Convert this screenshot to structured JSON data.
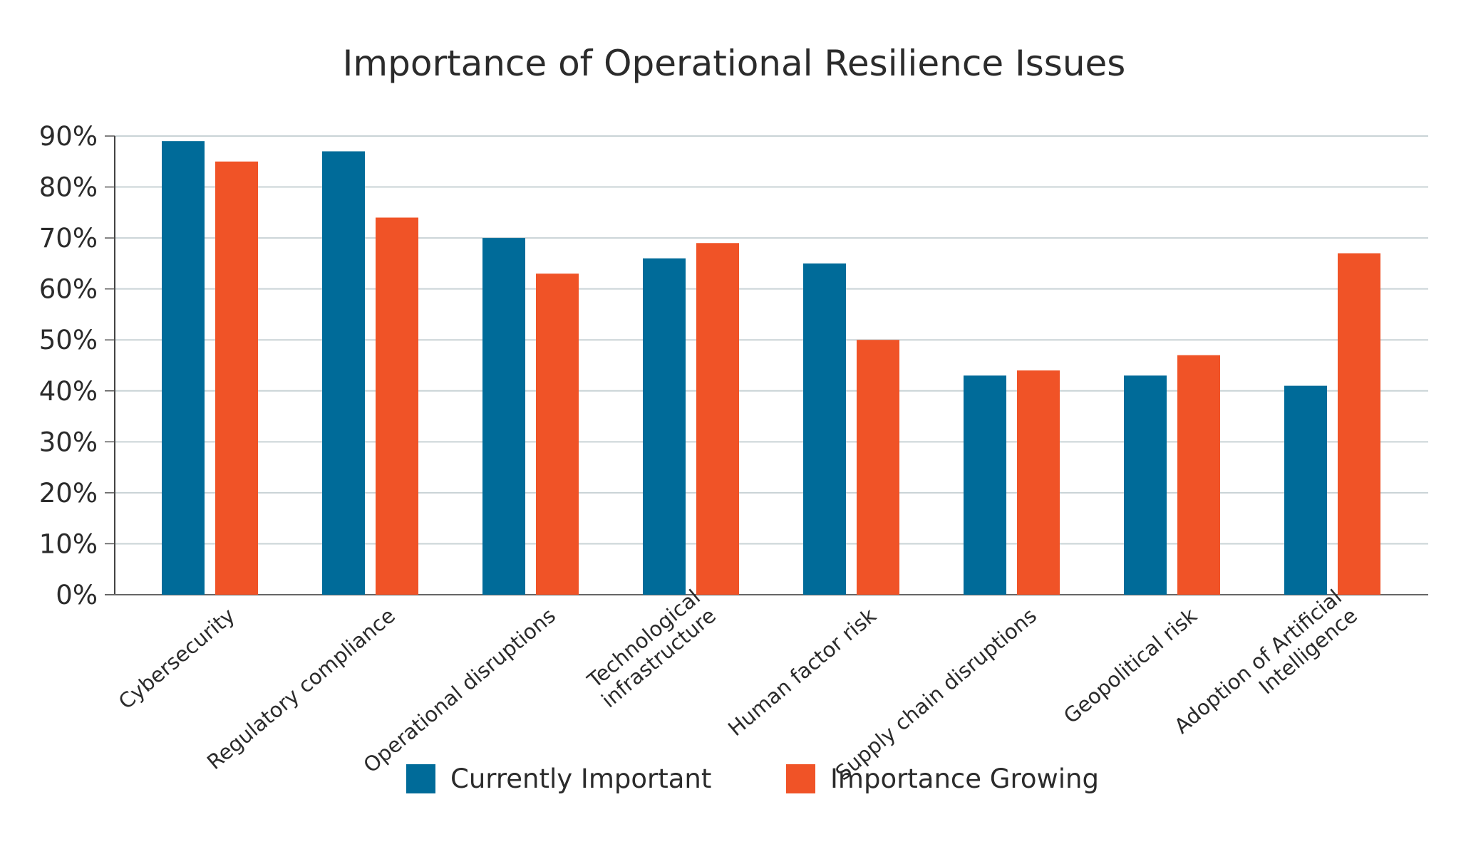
{
  "chart_data": {
    "type": "bar",
    "title": "Importance of Operational Resilience Issues",
    "categories": [
      [
        "Cybersecurity"
      ],
      [
        "Regulatory compliance"
      ],
      [
        "Operational disruptions"
      ],
      [
        "Technological",
        "infrastructure"
      ],
      [
        "Human factor risk"
      ],
      [
        "Supply chain disruptions"
      ],
      [
        "Geopolitical risk"
      ],
      [
        "Adoption of Artificial",
        "Intelligence"
      ]
    ],
    "series": [
      {
        "name": "Currently Important",
        "color": "#006b99",
        "values": [
          89,
          87,
          70,
          66,
          65,
          43,
          43,
          41
        ]
      },
      {
        "name": "Importance Growing",
        "color": "#f05327",
        "values": [
          85,
          74,
          63,
          69,
          50,
          44,
          47,
          67
        ]
      }
    ],
    "ylim": [
      0,
      90
    ],
    "yticks": [
      "0%",
      "10%",
      "20%",
      "30%",
      "40%",
      "50%",
      "60%",
      "70%",
      "80%",
      "90%"
    ],
    "grid": true,
    "legend": "bottom"
  }
}
